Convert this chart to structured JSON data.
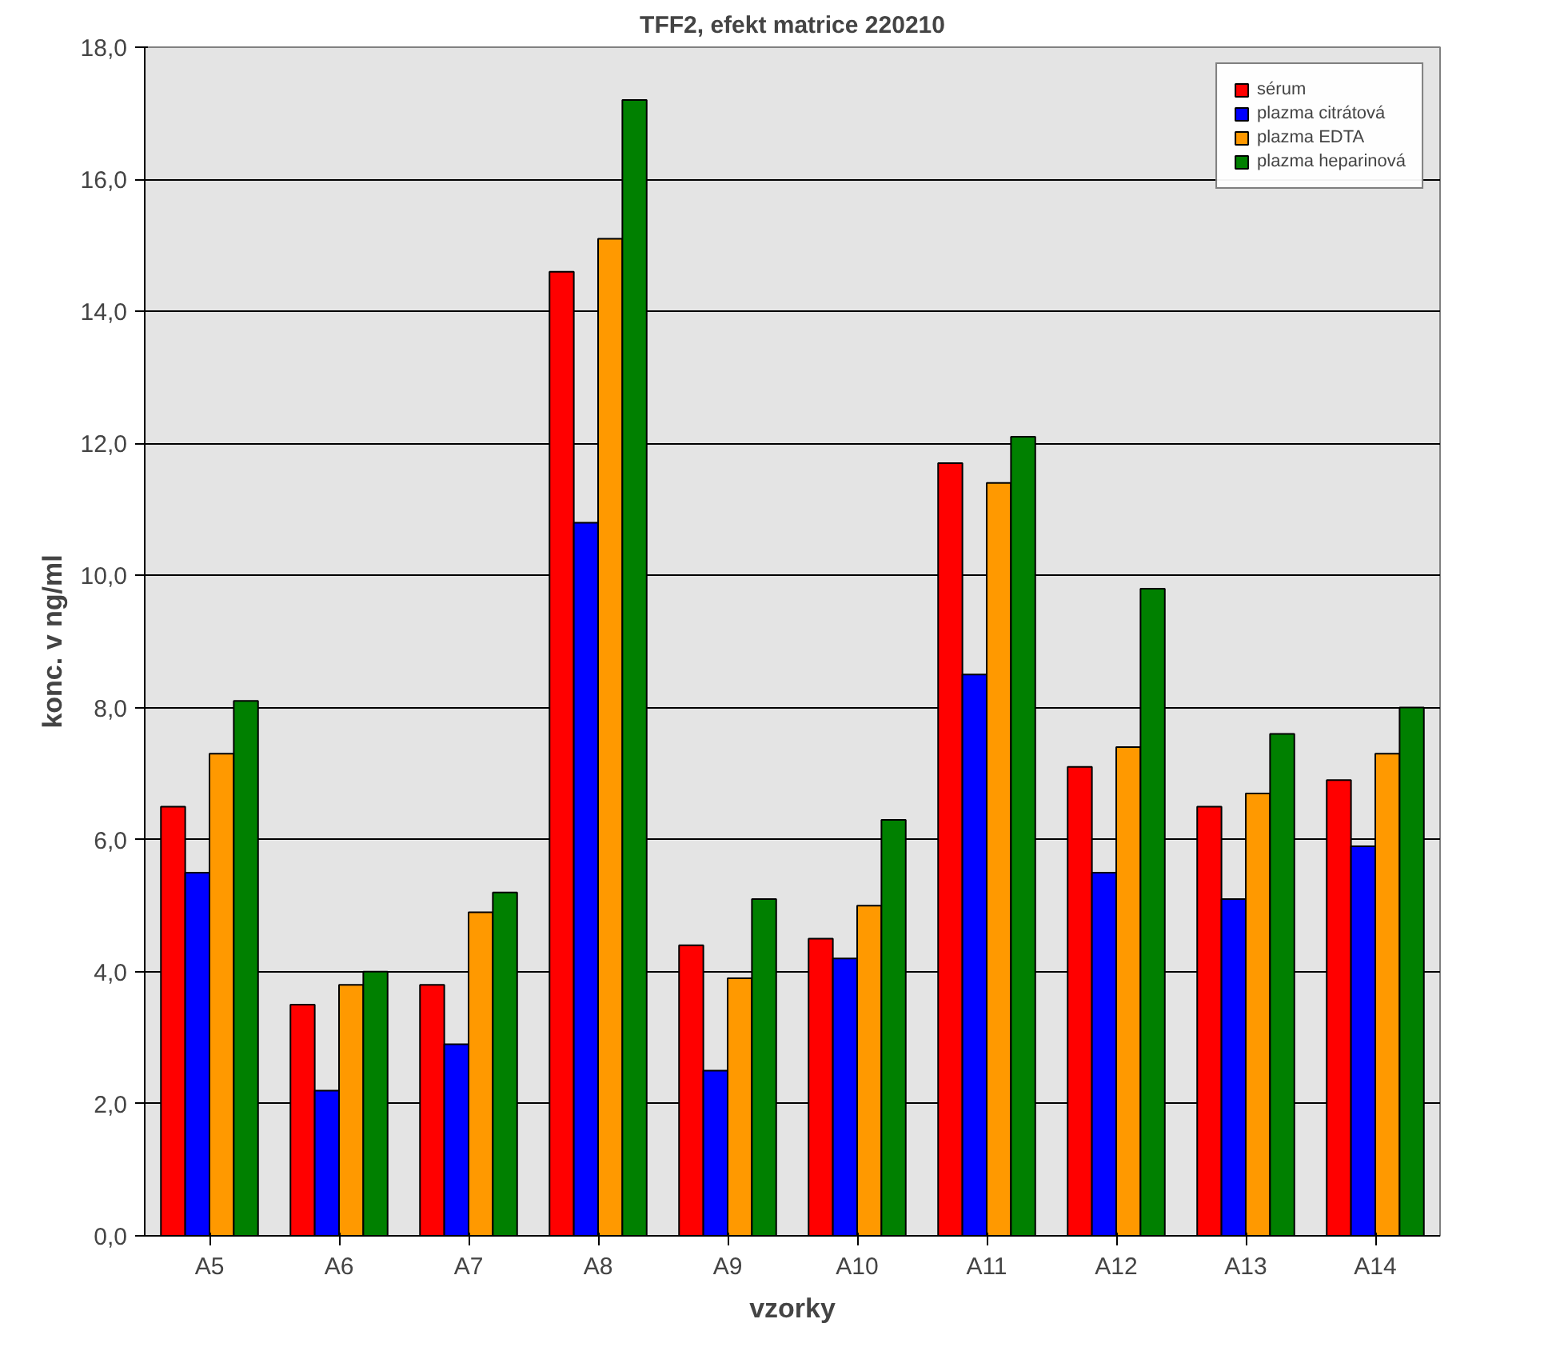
{
  "chart_data": {
    "type": "bar",
    "title": "TFF2, efekt matrice 220210",
    "xlabel": "vzorky",
    "ylabel": "konc. v ng/ml",
    "categories": [
      "A5",
      "A6",
      "A7",
      "A8",
      "A9",
      "A10",
      "A11",
      "A12",
      "A13",
      "A14"
    ],
    "series": [
      {
        "name": "sérum",
        "color": "#ff0000",
        "values": [
          6.5,
          3.5,
          3.8,
          14.6,
          4.4,
          4.5,
          11.7,
          7.1,
          6.5,
          6.9
        ]
      },
      {
        "name": "plazma citrátová",
        "color": "#0000ff",
        "values": [
          5.5,
          2.2,
          2.9,
          10.8,
          2.5,
          4.2,
          8.5,
          5.5,
          5.1,
          5.9
        ]
      },
      {
        "name": "plazma EDTA",
        "color": "#ff9900",
        "values": [
          7.3,
          3.8,
          4.9,
          15.1,
          3.9,
          5.0,
          11.4,
          7.4,
          6.7,
          7.3
        ]
      },
      {
        "name": "plazma heparinová",
        "color": "#008000",
        "values": [
          8.1,
          4.0,
          5.2,
          17.2,
          5.1,
          6.3,
          12.1,
          9.8,
          7.6,
          8.0
        ]
      }
    ],
    "ylim": [
      0,
      18
    ],
    "yticks": [
      {
        "value": 0,
        "label": "0,0"
      },
      {
        "value": 2,
        "label": "2,0"
      },
      {
        "value": 4,
        "label": "4,0"
      },
      {
        "value": 6,
        "label": "6,0"
      },
      {
        "value": 8,
        "label": "8,0"
      },
      {
        "value": 10,
        "label": "10,0"
      },
      {
        "value": 12,
        "label": "12,0"
      },
      {
        "value": 14,
        "label": "14,0"
      },
      {
        "value": 16,
        "label": "16,0"
      },
      {
        "value": 18,
        "label": "18,0"
      }
    ],
    "grid": "y",
    "legend": "top right"
  }
}
